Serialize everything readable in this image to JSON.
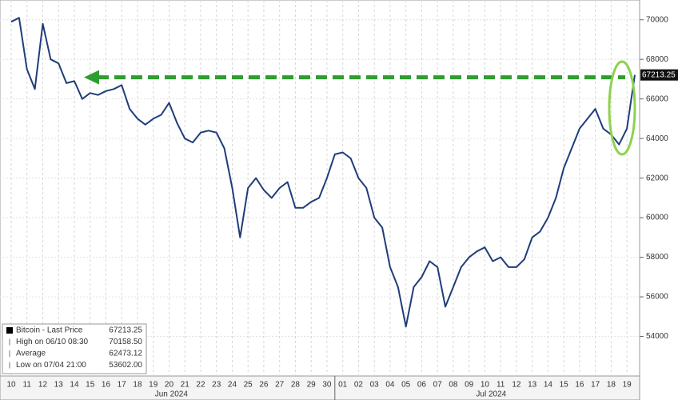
{
  "chart_data": {
    "type": "line",
    "categories": [
      "10",
      null,
      "11",
      null,
      "12",
      null,
      "13",
      null,
      "14",
      null,
      "15",
      null,
      "16",
      null,
      "17",
      null,
      "18",
      null,
      "19",
      null,
      "20",
      null,
      "21",
      null,
      "22",
      null,
      "23",
      null,
      "24",
      null,
      "25",
      null,
      "26",
      null,
      "27",
      null,
      "28",
      null,
      "29",
      null,
      "30",
      null,
      "01",
      null,
      "02",
      null,
      "03",
      null,
      "04",
      null,
      "05",
      null,
      "06",
      null,
      "07",
      null,
      "08",
      null,
      "09",
      null,
      "10",
      null,
      "11",
      null,
      "12",
      null,
      "13",
      null,
      "14",
      null,
      "15",
      null,
      "16",
      null,
      "17",
      null,
      "18",
      null,
      "19",
      null
    ],
    "months": [
      {
        "label": "Jun 2024"
      },
      {
        "label": "Jul 2024"
      }
    ],
    "series": [
      {
        "name": "Bitcoin - Last Price",
        "color": "#1f3d7a",
        "values": [
          69900,
          70100,
          67500,
          66500,
          69800,
          68000,
          67800,
          66800,
          66900,
          66000,
          66300,
          66200,
          66400,
          66500,
          66700,
          65500,
          65000,
          64700,
          65000,
          65200,
          65800,
          64800,
          64000,
          63800,
          64300,
          64400,
          64300,
          63500,
          61500,
          59000,
          61500,
          62000,
          61400,
          61000,
          61500,
          61800,
          60500,
          60500,
          60800,
          61000,
          62000,
          63200,
          63300,
          63000,
          62000,
          61500,
          60000,
          59500,
          57500,
          56500,
          54500,
          56500,
          57000,
          57800,
          57500,
          55500,
          56500,
          57500,
          58000,
          58300,
          58500,
          57800,
          58000,
          57500,
          57500,
          57900,
          59000,
          59300,
          60000,
          61000,
          62500,
          63500,
          64500,
          65000,
          65500,
          64500,
          64200,
          63700,
          64500,
          67213.25
        ]
      }
    ],
    "last_price": 67213.25,
    "legend_rows": [
      {
        "value": "67213.25"
      },
      {
        "label": "High on 06/10 08:30",
        "value": "70158.50"
      },
      {
        "label": "Average",
        "value": "62473.12"
      },
      {
        "label": "Low on 07/04 21:00",
        "value": "53602.00"
      }
    ],
    "ylim": [
      52000,
      71000
    ],
    "yticks": [
      54000,
      56000,
      58000,
      60000,
      62000,
      64000,
      66000,
      68000,
      70000
    ],
    "grid": true
  }
}
